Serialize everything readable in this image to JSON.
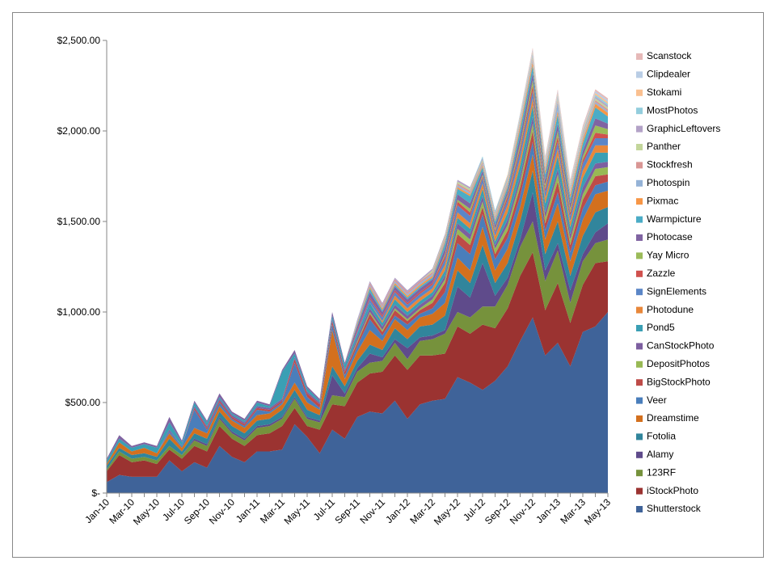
{
  "chart_data": {
    "type": "stacked-area",
    "categories": [
      "Jan-10",
      null,
      "Mar-10",
      null,
      "May-10",
      null,
      "Jul-10",
      null,
      "Sep-10",
      null,
      "Nov-10",
      null,
      "Jan-11",
      null,
      "Mar-11",
      null,
      "May-11",
      null,
      "Jul-11",
      null,
      "Sep-11",
      null,
      "Nov-11",
      null,
      "Jan-12",
      null,
      "Mar-12",
      null,
      "May-12",
      null,
      "Jul-12",
      null,
      "Sep-12",
      null,
      "Nov-12",
      null,
      "Jan-13",
      null,
      "Mar-13",
      null,
      "May-13"
    ],
    "ylim": [
      0,
      2500
    ],
    "yticks": [
      {
        "value": 0,
        "label": "$-"
      },
      {
        "value": 500,
        "label": "$500.00"
      },
      {
        "value": 1000,
        "label": "$1,000.00"
      },
      {
        "value": 1500,
        "label": "$1,500.00"
      },
      {
        "value": 2000,
        "label": "$2,000.00"
      },
      {
        "value": 2500,
        "label": "$2,500.00"
      }
    ],
    "grid": false,
    "legend": "right",
    "series": [
      {
        "name": "Shutterstock",
        "color": "#3F6399",
        "values": [
          60,
          100,
          90,
          90,
          90,
          180,
          120,
          170,
          140,
          260,
          200,
          170,
          230,
          230,
          240,
          380,
          310,
          220,
          350,
          300,
          420,
          450,
          440,
          510,
          410,
          490,
          510,
          520,
          640,
          610,
          570,
          620,
          700,
          840,
          970,
          760,
          830,
          700,
          890,
          920,
          1000
        ]
      },
      {
        "name": "iStockPhoto",
        "color": "#9B3331",
        "values": [
          60,
          110,
          80,
          90,
          70,
          60,
          70,
          90,
          90,
          110,
          100,
          90,
          90,
          100,
          130,
          90,
          60,
          130,
          140,
          180,
          190,
          210,
          230,
          250,
          270,
          270,
          250,
          250,
          280,
          270,
          360,
          290,
          320,
          360,
          360,
          250,
          330,
          240,
          260,
          350,
          280
        ]
      },
      {
        "name": "123RF",
        "color": "#76923C",
        "values": [
          10,
          20,
          20,
          20,
          20,
          20,
          20,
          30,
          30,
          40,
          30,
          30,
          40,
          40,
          40,
          50,
          40,
          40,
          50,
          50,
          60,
          60,
          60,
          70,
          60,
          80,
          90,
          110,
          80,
          90,
          100,
          120,
          130,
          160,
          170,
          160,
          180,
          110,
          130,
          110,
          120
        ]
      },
      {
        "name": "Alamy",
        "color": "#5F4B8B",
        "values": [
          0,
          0,
          0,
          0,
          0,
          0,
          0,
          10,
          10,
          10,
          10,
          10,
          10,
          10,
          10,
          10,
          10,
          10,
          110,
          20,
          20,
          50,
          20,
          20,
          60,
          20,
          20,
          20,
          140,
          110,
          240,
          60,
          40,
          40,
          160,
          60,
          40,
          70,
          40,
          60,
          90
        ]
      },
      {
        "name": "Fotolia",
        "color": "#31859C",
        "values": [
          20,
          20,
          20,
          20,
          20,
          40,
          20,
          30,
          30,
          30,
          30,
          30,
          30,
          30,
          40,
          40,
          40,
          30,
          50,
          40,
          40,
          50,
          40,
          60,
          50,
          60,
          60,
          80,
          90,
          80,
          100,
          70,
          80,
          100,
          120,
          90,
          120,
          80,
          100,
          110,
          90
        ]
      },
      {
        "name": "Dreamstime",
        "color": "#D3701E",
        "values": [
          10,
          30,
          20,
          30,
          20,
          30,
          20,
          30,
          30,
          30,
          30,
          30,
          30,
          30,
          30,
          40,
          40,
          30,
          200,
          40,
          50,
          80,
          50,
          50,
          50,
          50,
          60,
          70,
          70,
          70,
          100,
          70,
          80,
          80,
          90,
          80,
          100,
          80,
          90,
          100,
          90
        ]
      },
      {
        "name": "Veer",
        "color": "#4A7EBB",
        "values": [
          0,
          0,
          0,
          0,
          0,
          10,
          10,
          100,
          20,
          20,
          10,
          10,
          30,
          10,
          10,
          110,
          30,
          10,
          30,
          20,
          30,
          60,
          30,
          20,
          30,
          20,
          30,
          60,
          80,
          90,
          70,
          60,
          60,
          60,
          70,
          50,
          60,
          50,
          60,
          50,
          50
        ]
      },
      {
        "name": "BigStockPhoto",
        "color": "#BE4B48",
        "values": [
          0,
          0,
          0,
          0,
          0,
          0,
          0,
          10,
          10,
          10,
          10,
          10,
          10,
          10,
          10,
          20,
          20,
          20,
          20,
          20,
          20,
          30,
          20,
          30,
          20,
          20,
          30,
          50,
          50,
          50,
          40,
          30,
          40,
          50,
          60,
          40,
          60,
          40,
          50,
          50,
          40
        ]
      },
      {
        "name": "DepositPhotos",
        "color": "#98B954",
        "values": [
          0,
          0,
          0,
          0,
          0,
          0,
          0,
          0,
          0,
          0,
          0,
          0,
          0,
          0,
          0,
          0,
          0,
          0,
          0,
          0,
          10,
          10,
          10,
          10,
          10,
          10,
          20,
          20,
          30,
          30,
          30,
          30,
          30,
          30,
          40,
          30,
          40,
          30,
          30,
          40,
          40
        ]
      },
      {
        "name": "CanStockPhoto",
        "color": "#7D5FA0",
        "values": [
          0,
          0,
          0,
          0,
          0,
          10,
          0,
          10,
          10,
          10,
          10,
          10,
          10,
          10,
          10,
          10,
          10,
          10,
          10,
          10,
          20,
          20,
          20,
          20,
          20,
          20,
          20,
          20,
          30,
          30,
          30,
          20,
          30,
          30,
          40,
          30,
          30,
          30,
          40,
          30,
          30
        ]
      },
      {
        "name": "Pond5",
        "color": "#3A9FB4",
        "values": [
          20,
          20,
          20,
          20,
          30,
          40,
          20,
          20,
          20,
          10,
          10,
          10,
          20,
          10,
          150,
          20,
          20,
          10,
          20,
          30,
          20,
          30,
          20,
          30,
          20,
          20,
          20,
          30,
          30,
          30,
          40,
          20,
          40,
          60,
          60,
          50,
          70,
          40,
          50,
          60,
          50
        ]
      },
      {
        "name": "Photodune",
        "color": "#E8873A",
        "values": [
          0,
          0,
          0,
          0,
          0,
          0,
          0,
          0,
          0,
          0,
          0,
          0,
          0,
          0,
          0,
          0,
          0,
          0,
          0,
          0,
          0,
          0,
          10,
          20,
          20,
          20,
          20,
          30,
          30,
          30,
          30,
          30,
          40,
          40,
          40,
          30,
          40,
          30,
          40,
          40,
          40
        ]
      },
      {
        "name": "SignElements",
        "color": "#5B86C7",
        "values": [
          0,
          0,
          0,
          0,
          0,
          0,
          0,
          0,
          0,
          0,
          0,
          0,
          0,
          0,
          0,
          0,
          0,
          0,
          0,
          0,
          10,
          20,
          20,
          20,
          20,
          20,
          20,
          30,
          40,
          40,
          30,
          20,
          30,
          40,
          40,
          30,
          40,
          30,
          40,
          40,
          40
        ]
      },
      {
        "name": "Zazzle",
        "color": "#D0514E",
        "values": [
          0,
          0,
          0,
          0,
          0,
          0,
          0,
          0,
          0,
          0,
          0,
          0,
          0,
          0,
          0,
          0,
          0,
          0,
          0,
          0,
          10,
          10,
          10,
          10,
          10,
          10,
          10,
          20,
          20,
          20,
          10,
          10,
          20,
          20,
          30,
          20,
          30,
          20,
          20,
          30,
          20
        ]
      },
      {
        "name": "Yay Micro",
        "color": "#9BBB59",
        "values": [
          0,
          0,
          0,
          0,
          0,
          0,
          0,
          0,
          0,
          0,
          0,
          0,
          0,
          0,
          0,
          0,
          0,
          0,
          0,
          0,
          0,
          0,
          0,
          0,
          0,
          0,
          0,
          10,
          10,
          20,
          10,
          10,
          10,
          20,
          30,
          20,
          30,
          20,
          20,
          40,
          30
        ]
      },
      {
        "name": "Photocase",
        "color": "#8064A2",
        "values": [
          10,
          20,
          10,
          10,
          10,
          30,
          10,
          10,
          10,
          20,
          10,
          10,
          10,
          10,
          10,
          20,
          10,
          10,
          20,
          10,
          20,
          30,
          20,
          20,
          20,
          20,
          20,
          30,
          30,
          30,
          20,
          20,
          20,
          40,
          40,
          30,
          40,
          30,
          30,
          40,
          30
        ]
      },
      {
        "name": "Warmpicture",
        "color": "#4BACC6",
        "values": [
          0,
          0,
          0,
          0,
          0,
          0,
          0,
          0,
          0,
          0,
          0,
          0,
          0,
          0,
          0,
          0,
          0,
          0,
          0,
          0,
          10,
          20,
          10,
          10,
          10,
          10,
          10,
          30,
          30,
          40,
          20,
          20,
          20,
          40,
          40,
          30,
          50,
          30,
          40,
          60,
          40
        ]
      },
      {
        "name": "Pixmac",
        "color": "#F79646",
        "values": [
          0,
          0,
          0,
          0,
          0,
          0,
          0,
          0,
          0,
          0,
          0,
          0,
          0,
          0,
          0,
          0,
          0,
          0,
          0,
          0,
          10,
          10,
          10,
          10,
          10,
          10,
          10,
          10,
          10,
          10,
          10,
          10,
          10,
          20,
          20,
          20,
          20,
          20,
          20,
          20,
          20
        ]
      },
      {
        "name": "Photospin",
        "color": "#95B3D7",
        "values": [
          0,
          0,
          0,
          0,
          0,
          0,
          0,
          0,
          0,
          0,
          0,
          0,
          0,
          0,
          0,
          0,
          0,
          0,
          0,
          0,
          10,
          10,
          10,
          10,
          10,
          10,
          10,
          10,
          10,
          10,
          10,
          10,
          10,
          10,
          10,
          10,
          50,
          10,
          10,
          10,
          10
        ]
      },
      {
        "name": "Stockfresh",
        "color": "#D99694",
        "values": [
          0,
          0,
          0,
          0,
          0,
          0,
          0,
          0,
          0,
          0,
          0,
          0,
          0,
          0,
          0,
          0,
          0,
          0,
          0,
          0,
          0,
          10,
          10,
          10,
          10,
          10,
          10,
          10,
          10,
          10,
          10,
          10,
          10,
          10,
          10,
          10,
          10,
          10,
          10,
          10,
          10
        ]
      },
      {
        "name": "Panther",
        "color": "#C3D69B",
        "values": [
          0,
          0,
          0,
          0,
          0,
          0,
          0,
          0,
          0,
          0,
          0,
          0,
          0,
          0,
          0,
          0,
          0,
          0,
          0,
          0,
          0,
          0,
          0,
          0,
          0,
          0,
          10,
          10,
          10,
          10,
          10,
          10,
          10,
          10,
          10,
          10,
          10,
          10,
          10,
          10,
          10
        ]
      },
      {
        "name": "GraphicLeftovers",
        "color": "#B3A2C7",
        "values": [
          0,
          0,
          0,
          0,
          0,
          0,
          0,
          0,
          0,
          0,
          0,
          0,
          0,
          0,
          0,
          0,
          0,
          0,
          0,
          0,
          10,
          10,
          10,
          10,
          10,
          10,
          10,
          10,
          10,
          10,
          10,
          10,
          10,
          10,
          10,
          10,
          10,
          10,
          10,
          10,
          10
        ]
      },
      {
        "name": "MostPhotos",
        "color": "#93CDDD",
        "values": [
          0,
          0,
          0,
          0,
          0,
          0,
          0,
          0,
          0,
          0,
          0,
          0,
          0,
          0,
          0,
          0,
          0,
          0,
          0,
          0,
          0,
          0,
          0,
          0,
          0,
          0,
          0,
          0,
          0,
          0,
          10,
          10,
          10,
          10,
          10,
          10,
          10,
          10,
          10,
          10,
          10
        ]
      },
      {
        "name": "Stokami",
        "color": "#FAC090",
        "values": [
          0,
          0,
          0,
          0,
          0,
          0,
          0,
          0,
          0,
          0,
          0,
          0,
          0,
          0,
          0,
          0,
          0,
          0,
          0,
          0,
          0,
          0,
          0,
          0,
          0,
          0,
          0,
          0,
          0,
          0,
          0,
          0,
          10,
          10,
          10,
          10,
          10,
          10,
          10,
          10,
          10
        ]
      },
      {
        "name": "Clipdealer",
        "color": "#B9CDE5",
        "values": [
          0,
          0,
          0,
          0,
          0,
          0,
          0,
          0,
          0,
          0,
          0,
          0,
          0,
          0,
          0,
          0,
          0,
          0,
          0,
          0,
          0,
          0,
          0,
          0,
          0,
          0,
          0,
          0,
          0,
          0,
          0,
          0,
          0,
          10,
          10,
          10,
          10,
          10,
          10,
          10,
          10
        ]
      },
      {
        "name": "Scanstock",
        "color": "#E6B9B8",
        "values": [
          0,
          0,
          0,
          0,
          0,
          0,
          0,
          0,
          0,
          0,
          0,
          0,
          0,
          0,
          0,
          0,
          0,
          0,
          0,
          0,
          0,
          0,
          0,
          0,
          0,
          0,
          0,
          0,
          0,
          0,
          0,
          0,
          0,
          0,
          10,
          10,
          10,
          10,
          10,
          10,
          10
        ]
      }
    ]
  }
}
